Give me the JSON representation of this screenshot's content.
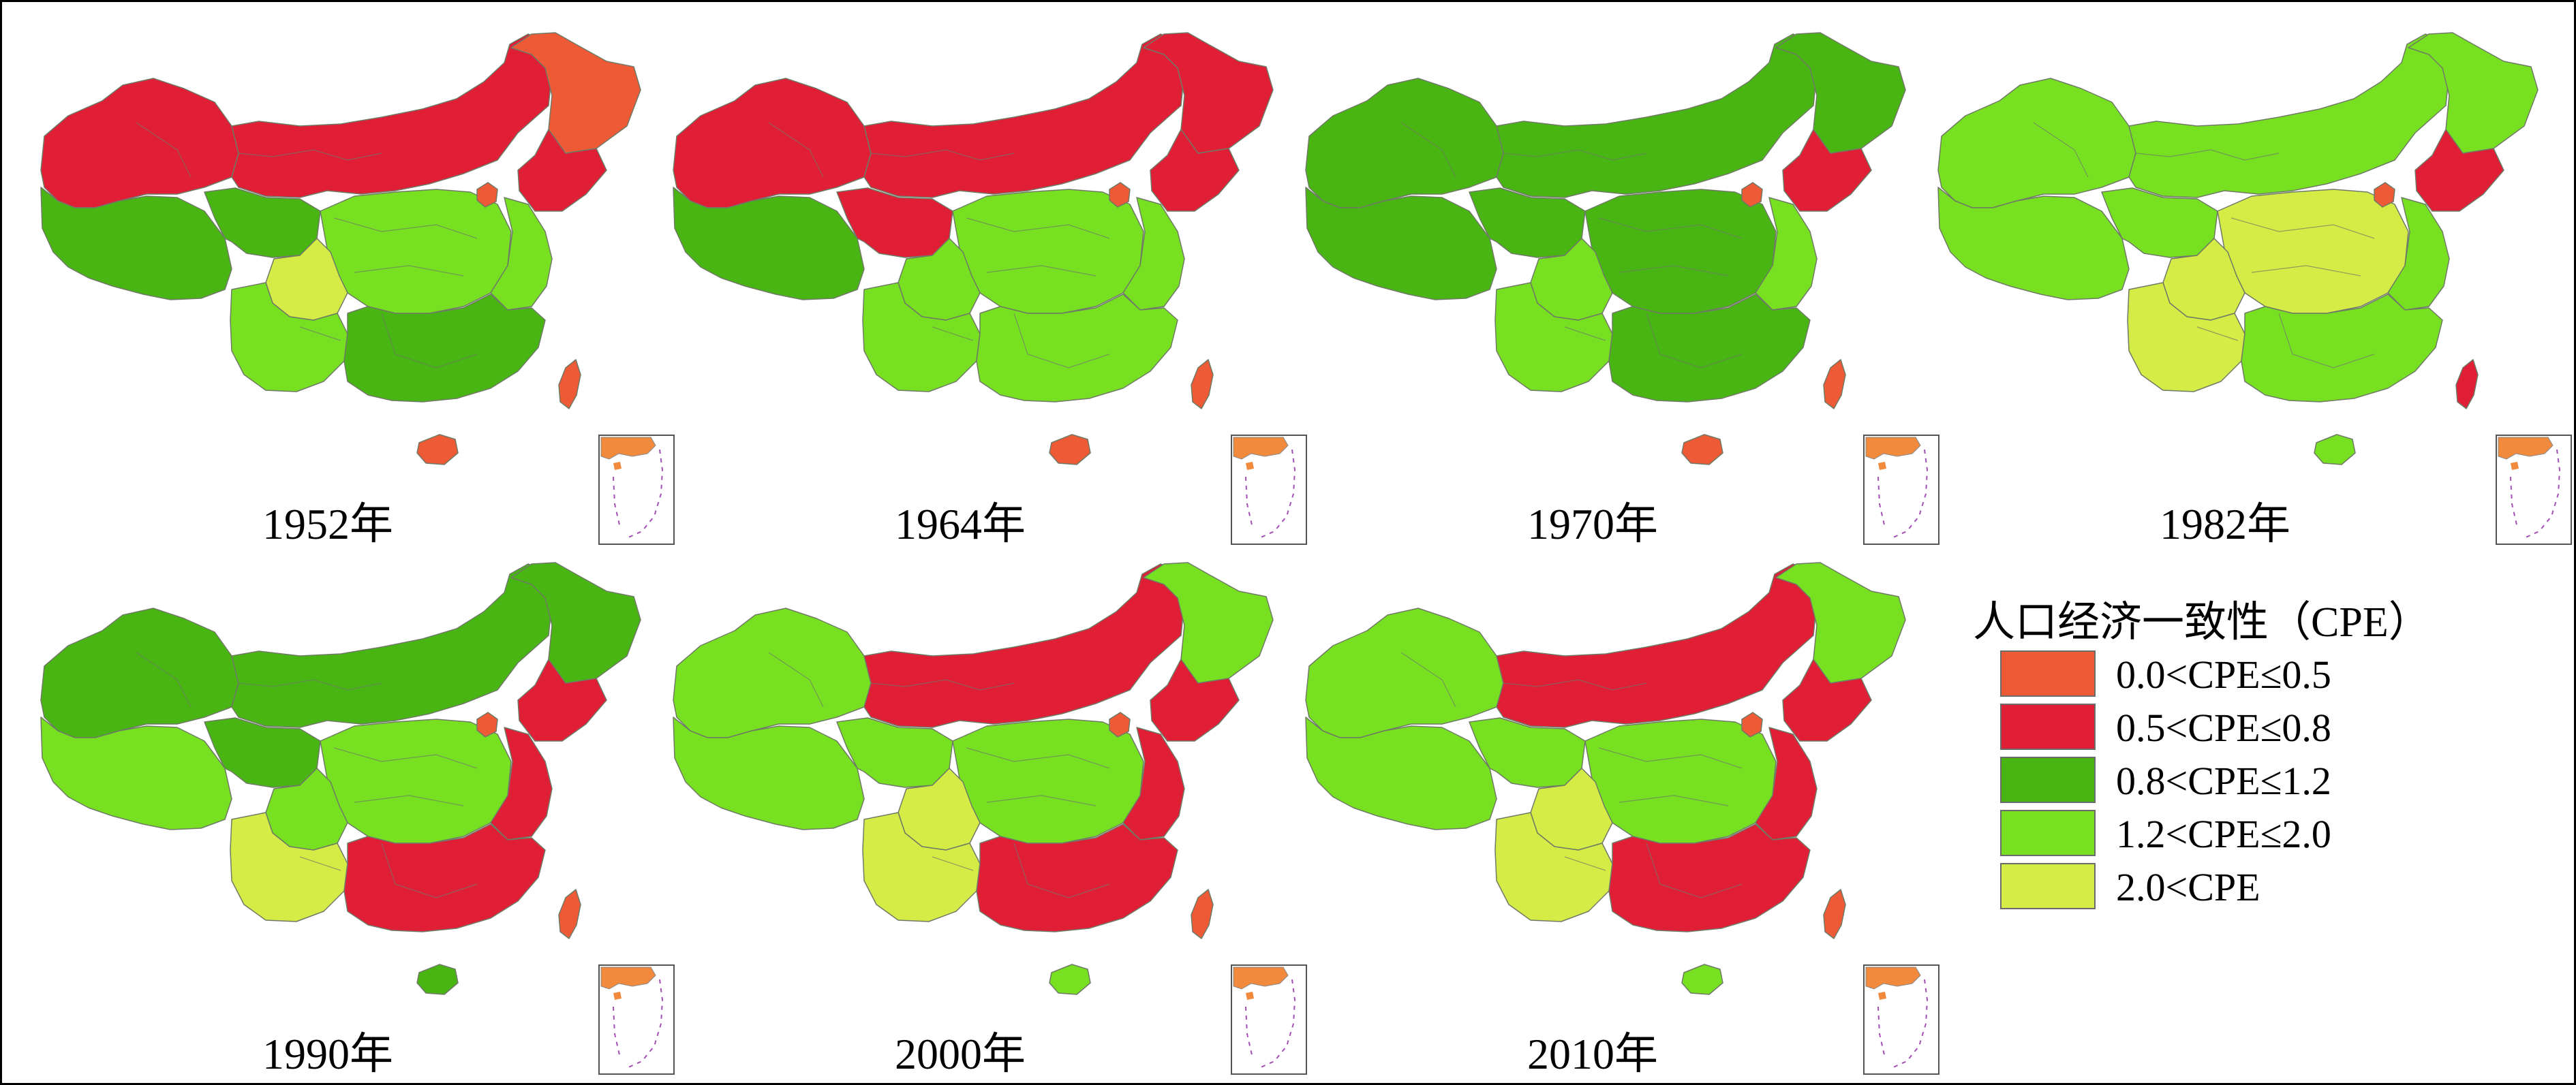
{
  "colors": {
    "c1": "#ee5a36",
    "c2": "#e01e36",
    "c3": "#48b513",
    "c4": "#76e021",
    "c5": "#d6ec46"
  },
  "legend": {
    "title": "人口经济一致性（CPE）",
    "items": [
      {
        "label": "0.0<CPE≤0.5",
        "class": "c1"
      },
      {
        "label": "0.5<CPE≤0.8",
        "class": "c2"
      },
      {
        "label": "0.8<CPE≤1.2",
        "class": "c3"
      },
      {
        "label": "1.2<CPE≤2.0",
        "class": "c4"
      },
      {
        "label": "2.0<CPE",
        "class": "c5"
      }
    ]
  },
  "maps": [
    {
      "year": "1952年",
      "regions": {
        "west": "c2",
        "north": "c2",
        "northeast": "c2",
        "heilongjiang": "c1",
        "beijing": "c1",
        "tibet": "c3",
        "qinghai": "c3",
        "sichuan": "c5",
        "central": "c4",
        "southwest": "c4",
        "east": "c4",
        "southeast": "c3",
        "hainan": "c1",
        "taiwan": "c1"
      }
    },
    {
      "year": "1964年",
      "regions": {
        "west": "c2",
        "north": "c2",
        "northeast": "c2",
        "heilongjiang": "c2",
        "beijing": "c1",
        "tibet": "c3",
        "qinghai": "c2",
        "sichuan": "c4",
        "central": "c4",
        "southwest": "c4",
        "east": "c4",
        "southeast": "c4",
        "hainan": "c1",
        "taiwan": "c1"
      }
    },
    {
      "year": "1970年",
      "regions": {
        "west": "c3",
        "north": "c3",
        "northeast": "c2",
        "heilongjiang": "c3",
        "beijing": "c1",
        "tibet": "c3",
        "qinghai": "c3",
        "sichuan": "c4",
        "central": "c3",
        "southwest": "c4",
        "east": "c4",
        "southeast": "c3",
        "hainan": "c1",
        "taiwan": "c1"
      }
    },
    {
      "year": "1982年",
      "regions": {
        "west": "c4",
        "north": "c4",
        "northeast": "c2",
        "heilongjiang": "c4",
        "beijing": "c1",
        "tibet": "c4",
        "qinghai": "c4",
        "sichuan": "c5",
        "central": "c5",
        "southwest": "c5",
        "east": "c4",
        "southeast": "c4",
        "hainan": "c4",
        "taiwan": "c2"
      }
    },
    {
      "year": "1990年",
      "regions": {
        "west": "c3",
        "north": "c3",
        "northeast": "c2",
        "heilongjiang": "c3",
        "beijing": "c1",
        "tibet": "c4",
        "qinghai": "c3",
        "sichuan": "c4",
        "central": "c4",
        "southwest": "c5",
        "east": "c2",
        "southeast": "c2",
        "hainan": "c3",
        "taiwan": "c1"
      }
    },
    {
      "year": "2000年",
      "regions": {
        "west": "c4",
        "north": "c2",
        "northeast": "c2",
        "heilongjiang": "c4",
        "beijing": "c1",
        "tibet": "c4",
        "qinghai": "c4",
        "sichuan": "c5",
        "central": "c4",
        "southwest": "c5",
        "east": "c2",
        "southeast": "c2",
        "hainan": "c4",
        "taiwan": "c1"
      }
    },
    {
      "year": "2010年",
      "regions": {
        "west": "c4",
        "north": "c2",
        "northeast": "c2",
        "heilongjiang": "c4",
        "beijing": "c1",
        "tibet": "c4",
        "qinghai": "c4",
        "sichuan": "c5",
        "central": "c4",
        "southwest": "c5",
        "east": "c2",
        "southeast": "c2",
        "hainan": "c4",
        "taiwan": "c1"
      }
    }
  ]
}
